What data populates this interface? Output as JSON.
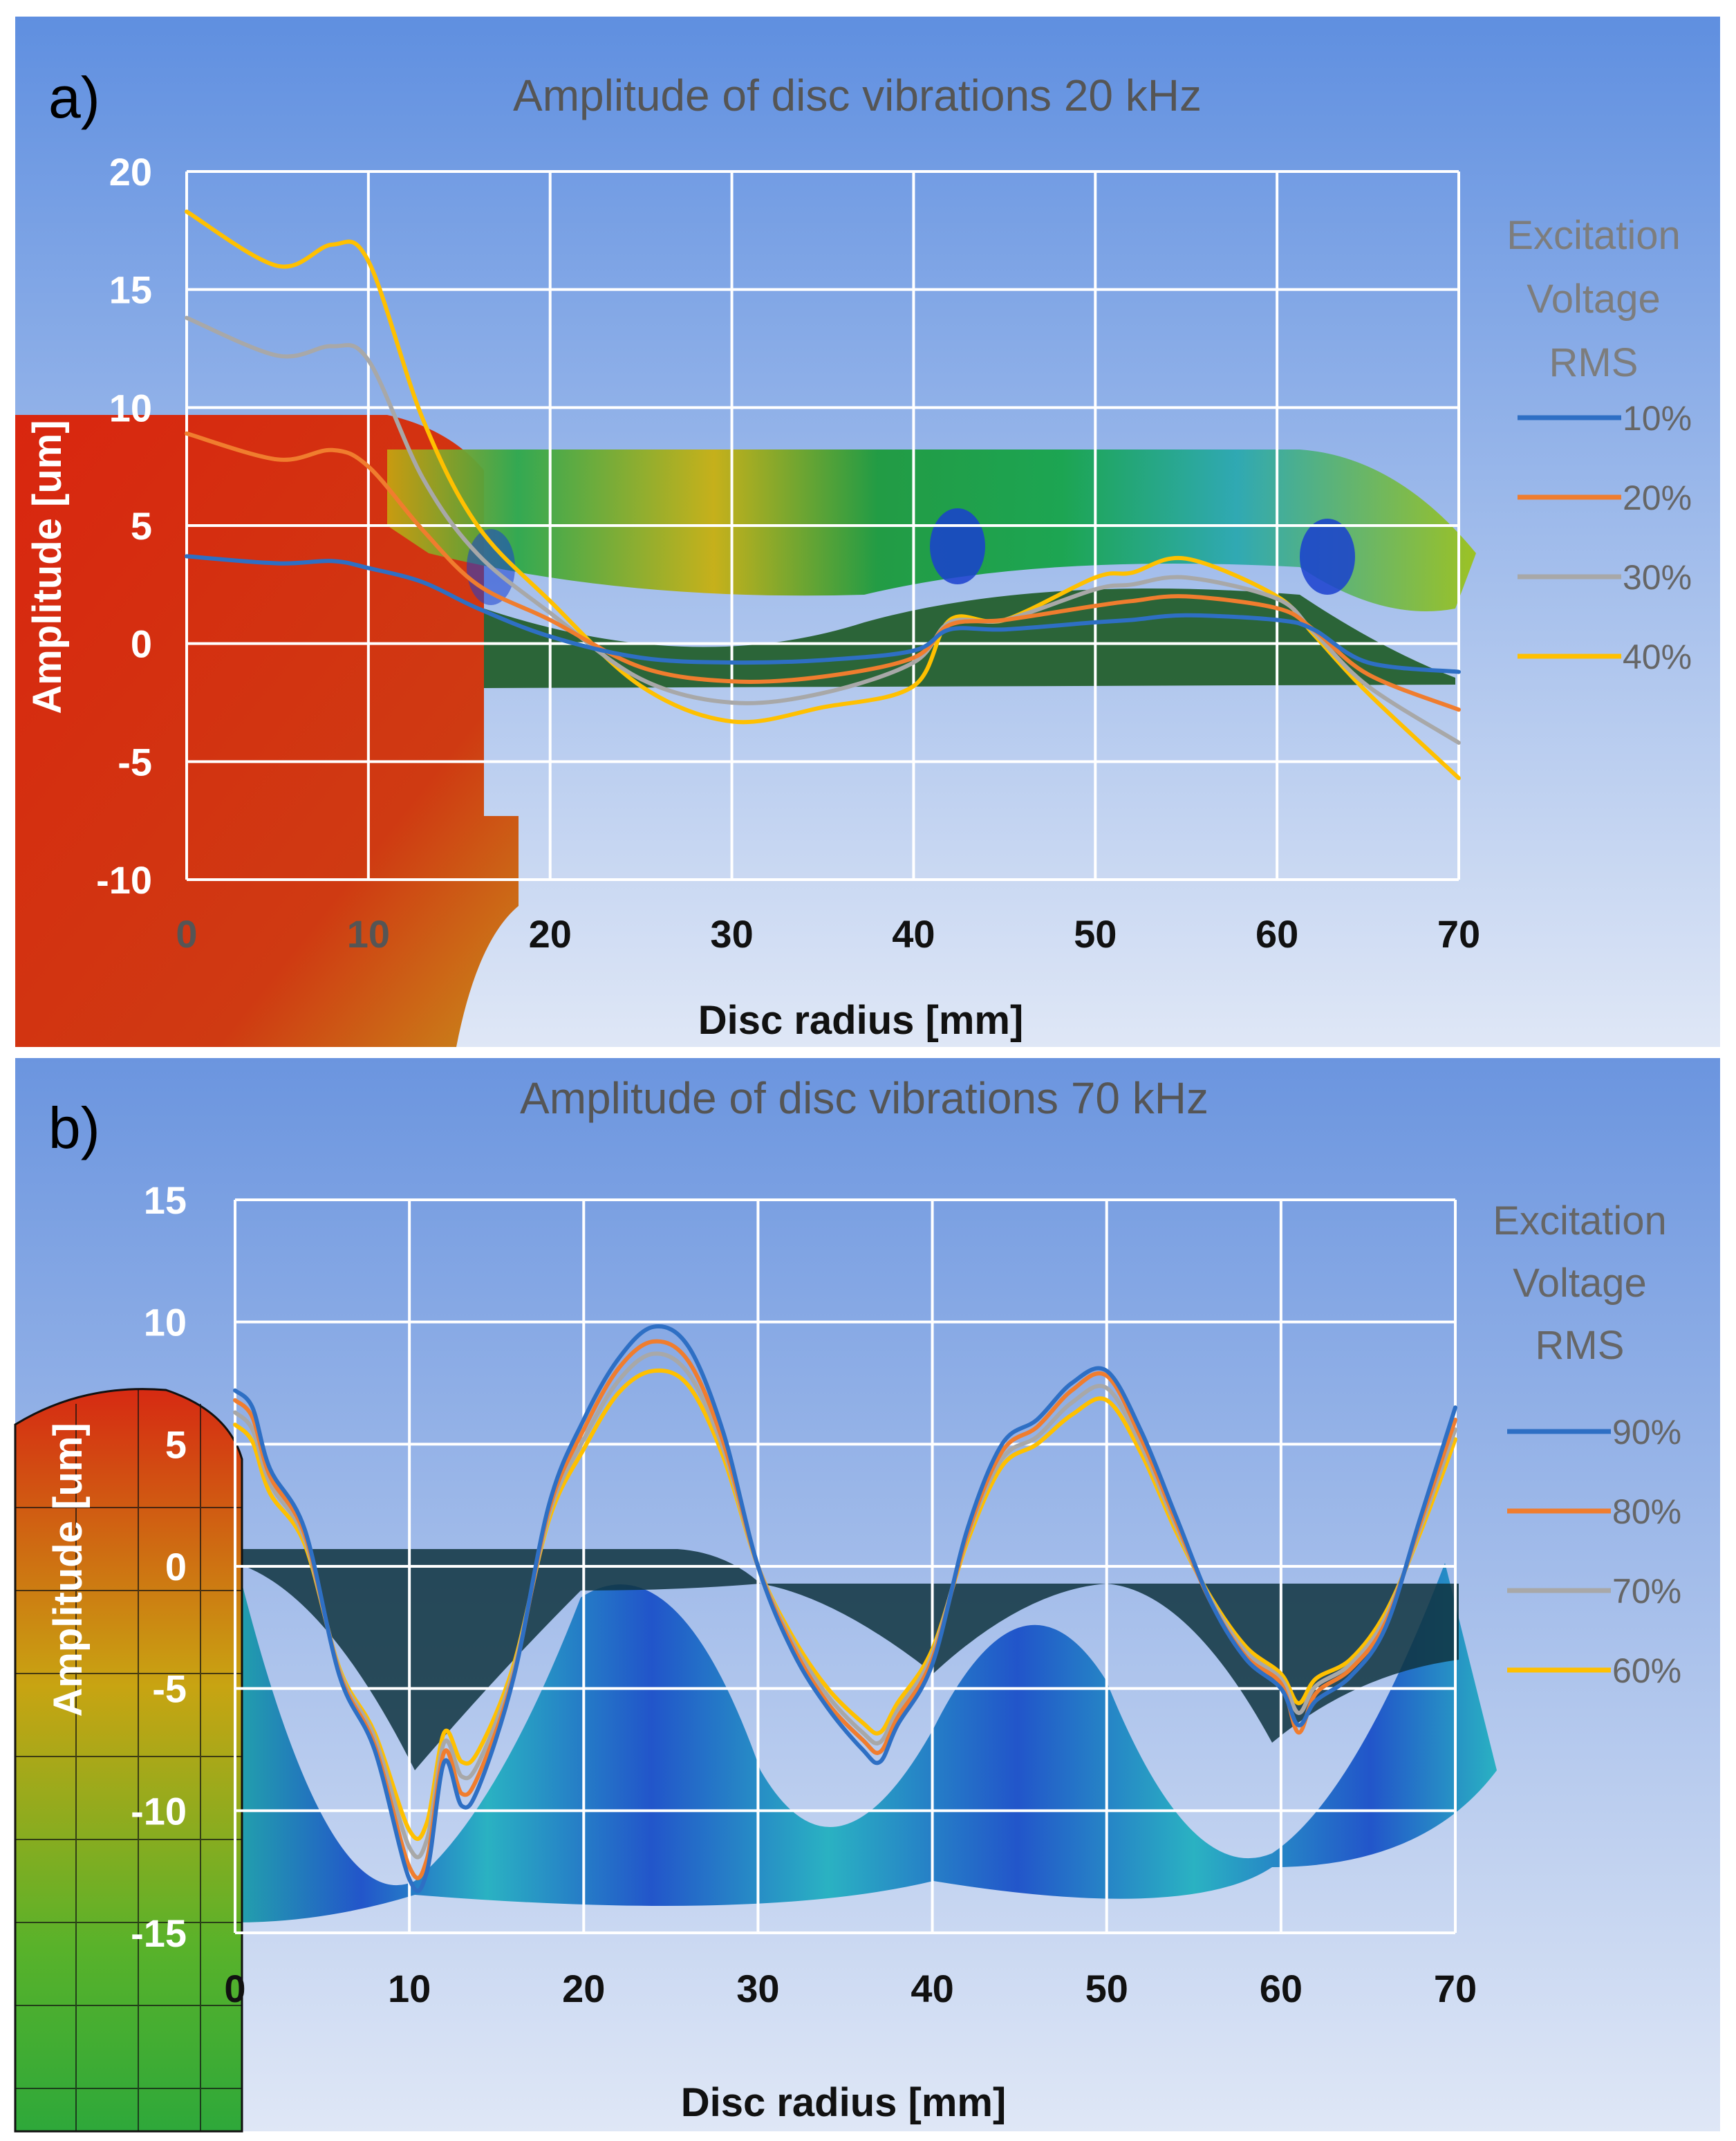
{
  "figure": {
    "panel_bg_top": "#5f8fe0",
    "panel_bg_bottom": "#dfe7f6"
  },
  "chart_data": [
    {
      "type": "line",
      "panel_label": "a)",
      "title": "Amplitude of disc vibrations 20 kHz",
      "xlabel": "Disc radius [mm]",
      "ylabel": "Amplitude [um]",
      "xlim": [
        0,
        70
      ],
      "ylim": [
        -10,
        20
      ],
      "xticks": [
        0,
        10,
        20,
        30,
        40,
        50,
        60,
        70
      ],
      "yticks": [
        -10,
        -5,
        0,
        5,
        10,
        15,
        20
      ],
      "grid": true,
      "legend_title": [
        "Excitation",
        "Voltage",
        "RMS"
      ],
      "legend_position": "right",
      "x": [
        0,
        5,
        8,
        10,
        13,
        16,
        20,
        25,
        30,
        35,
        40,
        42,
        45,
        50,
        52,
        55,
        60,
        62,
        65,
        70
      ],
      "series": [
        {
          "name": "10%",
          "color": "#2e6fc4",
          "values": [
            3.7,
            3.4,
            3.5,
            3.2,
            2.6,
            1.5,
            0.3,
            -0.6,
            -0.8,
            -0.7,
            -0.3,
            0.6,
            0.6,
            0.9,
            1.0,
            1.2,
            1.0,
            0.6,
            -0.8,
            -1.2
          ]
        },
        {
          "name": "20%",
          "color": "#f07d2e",
          "values": [
            8.9,
            7.8,
            8.2,
            7.5,
            4.8,
            2.5,
            1.0,
            -1.0,
            -1.6,
            -1.4,
            -0.6,
            0.8,
            1.0,
            1.6,
            1.8,
            2.0,
            1.5,
            0.6,
            -1.3,
            -2.8
          ]
        },
        {
          "name": "30%",
          "color": "#a8a8a8",
          "values": [
            13.8,
            12.2,
            12.6,
            12.0,
            7.0,
            3.8,
            1.3,
            -1.5,
            -2.5,
            -2.1,
            -0.8,
            0.9,
            1.0,
            2.3,
            2.5,
            2.8,
            1.9,
            0.5,
            -1.8,
            -4.2
          ]
        },
        {
          "name": "40%",
          "color": "#ffc000",
          "values": [
            18.3,
            16.0,
            16.9,
            16.2,
            9.5,
            5.0,
            1.8,
            -1.8,
            -3.3,
            -2.7,
            -1.8,
            1.0,
            1.0,
            2.8,
            3.0,
            3.6,
            2.0,
            0.4,
            -2.1,
            -5.7
          ]
        }
      ]
    },
    {
      "type": "line",
      "panel_label": "b)",
      "title": "Amplitude of disc vibrations 70 kHz",
      "xlabel": "Disc radius [mm]",
      "ylabel": "Amplitude [um]",
      "xlim": [
        0,
        70
      ],
      "ylim": [
        -15,
        15
      ],
      "xticks": [
        0,
        10,
        20,
        30,
        40,
        50,
        60,
        70
      ],
      "yticks": [
        -15,
        -10,
        -5,
        0,
        5,
        10,
        15
      ],
      "grid": true,
      "legend_title": [
        "Excitation",
        "Voltage",
        "RMS"
      ],
      "legend_position": "right",
      "x": [
        0,
        1,
        2,
        4,
        6,
        8,
        10,
        11,
        12,
        13,
        14,
        16,
        18,
        20,
        22,
        24,
        26,
        28,
        30,
        32,
        34,
        36,
        37,
        38,
        40,
        42,
        44,
        46,
        48,
        50,
        52,
        54,
        56,
        58,
        60,
        61,
        62,
        64,
        66,
        68,
        70
      ],
      "series": [
        {
          "name": "90%",
          "color": "#2e6fc4",
          "values": [
            7.2,
            6.5,
            4.0,
            1.5,
            -4.5,
            -7.5,
            -12.8,
            -12.5,
            -8.0,
            -9.8,
            -9.0,
            -4.5,
            2.5,
            6.0,
            8.5,
            9.8,
            9.0,
            5.5,
            0.0,
            -3.5,
            -5.8,
            -7.5,
            -8.0,
            -6.5,
            -4.0,
            1.5,
            5.0,
            6.0,
            7.5,
            8.0,
            5.5,
            2.0,
            -1.5,
            -3.8,
            -5.0,
            -6.5,
            -5.5,
            -4.5,
            -2.5,
            2.0,
            6.5
          ]
        },
        {
          "name": "80%",
          "color": "#f07d2e",
          "values": [
            6.8,
            6.1,
            3.7,
            1.3,
            -4.4,
            -7.3,
            -12.3,
            -12.0,
            -7.6,
            -9.3,
            -8.5,
            -4.4,
            2.3,
            5.6,
            8.1,
            9.2,
            8.4,
            5.1,
            0.0,
            -3.3,
            -5.6,
            -7.1,
            -7.6,
            -6.2,
            -3.8,
            1.3,
            4.7,
            5.7,
            7.2,
            7.8,
            5.2,
            1.8,
            -1.5,
            -3.7,
            -4.8,
            -6.8,
            -5.2,
            -4.2,
            -2.3,
            1.8,
            6.0
          ]
        },
        {
          "name": "70%",
          "color": "#a8a8a8",
          "values": [
            6.3,
            5.6,
            3.4,
            1.1,
            -4.3,
            -7.0,
            -11.5,
            -11.2,
            -7.2,
            -8.6,
            -8.0,
            -4.2,
            2.1,
            5.2,
            7.6,
            8.7,
            7.9,
            4.8,
            0.0,
            -3.1,
            -5.3,
            -6.8,
            -7.2,
            -5.9,
            -3.6,
            1.2,
            4.4,
            5.3,
            6.7,
            7.3,
            4.9,
            1.6,
            -1.4,
            -3.5,
            -4.6,
            -6.0,
            -4.9,
            -4.0,
            -2.1,
            1.6,
            5.6
          ]
        },
        {
          "name": "60%",
          "color": "#ffc000",
          "values": [
            5.8,
            5.1,
            3.0,
            0.9,
            -4.2,
            -6.8,
            -10.8,
            -10.5,
            -6.8,
            -8.0,
            -7.5,
            -4.0,
            1.9,
            4.8,
            7.1,
            8.0,
            7.4,
            4.5,
            0.0,
            -2.9,
            -5.0,
            -6.4,
            -6.8,
            -5.6,
            -3.4,
            1.0,
            4.1,
            5.0,
            6.2,
            6.8,
            4.6,
            1.4,
            -1.3,
            -3.3,
            -4.4,
            -5.6,
            -4.6,
            -3.8,
            -1.9,
            1.4,
            5.2
          ]
        }
      ]
    }
  ]
}
